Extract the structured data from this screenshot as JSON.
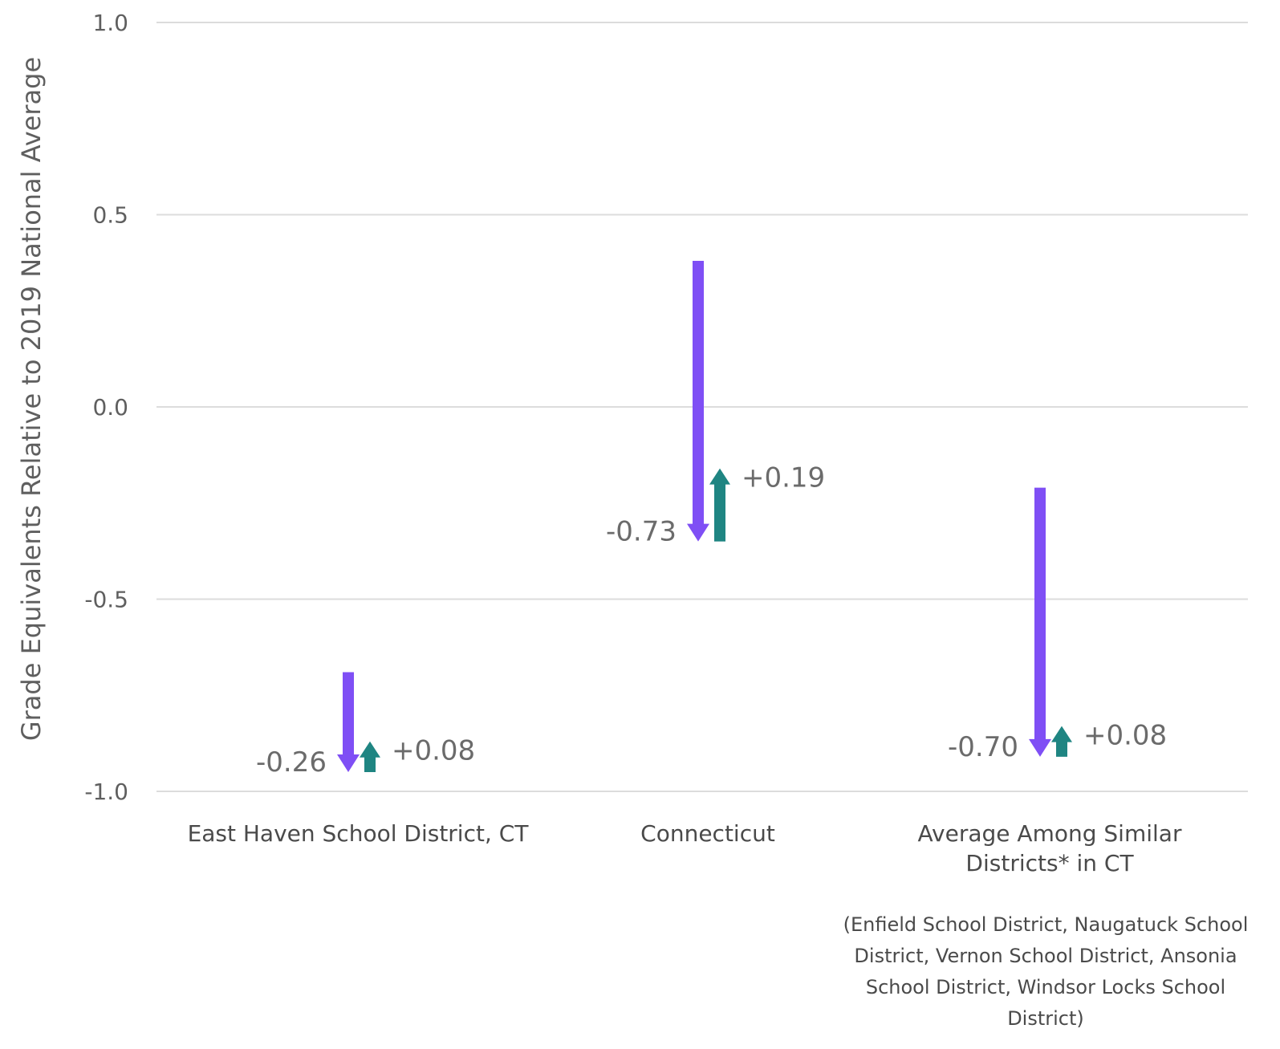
{
  "chart_data": {
    "type": "arrow",
    "ylabel": "Grade Equivalents Relative to 2019 National Average",
    "yticks": [
      "1.0",
      "0.5",
      "0.0",
      "-0.5",
      "-1.0"
    ],
    "ylim": [
      -1.0,
      1.0
    ],
    "grid": true,
    "colors": {
      "decline": "#7f4ff5",
      "recovery": "#1f8582"
    },
    "groups": [
      {
        "label_lines": [
          "East Haven School District, CT"
        ],
        "note_lines": [],
        "decline": {
          "from": -0.69,
          "to": -0.95,
          "label": "-0.26"
        },
        "recovery": {
          "from": -0.95,
          "to": -0.87,
          "label": "+0.08"
        }
      },
      {
        "label_lines": [
          "Connecticut"
        ],
        "note_lines": [],
        "decline": {
          "from": 0.38,
          "to": -0.35,
          "label": "-0.73"
        },
        "recovery": {
          "from": -0.35,
          "to": -0.16,
          "label": "+0.19"
        }
      },
      {
        "label_lines": [
          "Average Among Similar",
          "Districts* in CT"
        ],
        "note_lines": [
          "(Enfield School District, Naugatuck School",
          "District, Vernon School District, Ansonia",
          "School District, Windsor Locks School",
          "District)"
        ],
        "decline": {
          "from": -0.21,
          "to": -0.91,
          "label": "-0.70"
        },
        "recovery": {
          "from": -0.91,
          "to": -0.83,
          "label": "+0.08"
        }
      }
    ]
  }
}
